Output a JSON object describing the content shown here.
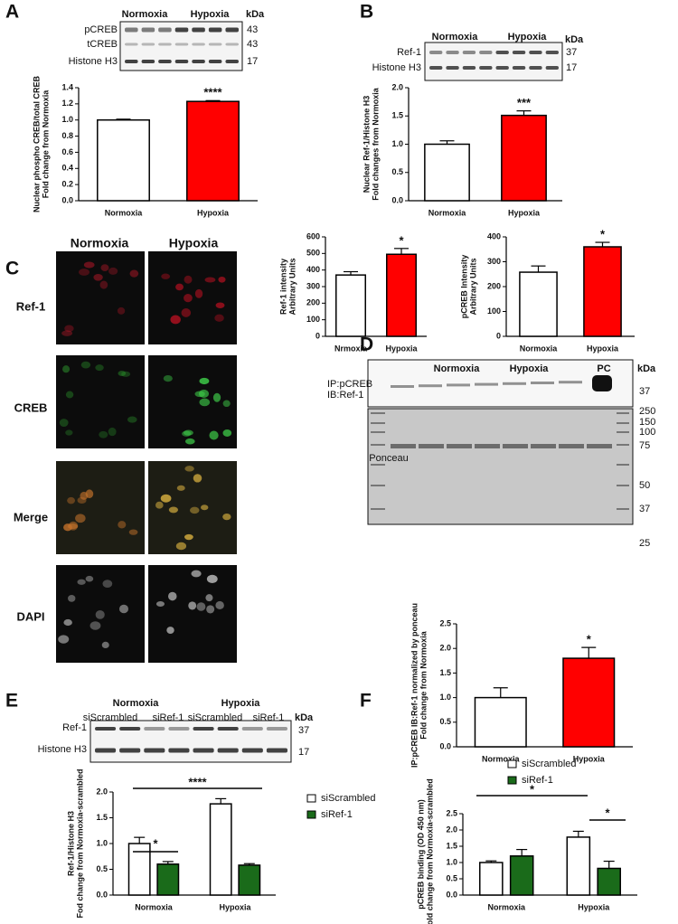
{
  "figure": {
    "letters": [
      "A",
      "B",
      "C",
      "D",
      "E",
      "F"
    ],
    "blot_a": {
      "groups": [
        "Normoxia",
        "Hypoxia"
      ],
      "unit": "kDa",
      "rows": [
        {
          "label": "pCREB",
          "kda": 43
        },
        {
          "label": "tCREB",
          "kda": 43
        },
        {
          "label": "Histone H3",
          "kda": 17
        }
      ]
    },
    "blot_b": {
      "groups": [
        "Normoxia",
        "Hypoxia"
      ],
      "unit": "kDa",
      "rows": [
        {
          "label": "Ref-1",
          "kda": 37
        },
        {
          "label": "Histone H3",
          "kda": 17
        }
      ]
    },
    "microscopy": {
      "columns": [
        "Normoxia",
        "Hypoxia"
      ],
      "rows": [
        "Ref-1",
        "CREB",
        "Merge",
        "DAPI"
      ]
    },
    "blot_d": {
      "groups": [
        "Normoxia",
        "Hypoxia",
        "PC"
      ],
      "unit": "kDa",
      "probe": [
        "IP:pCREB",
        "IB:Ref-1"
      ],
      "probe_kda": 37,
      "stain": "Ponceau",
      "ladder": [
        250,
        150,
        100,
        75,
        50,
        37,
        25
      ]
    },
    "blot_e": {
      "groups": [
        "Normoxia",
        "Hypoxia"
      ],
      "lanes": [
        "siScrambled",
        "siRef-1",
        "siScrambled",
        "siRef-1"
      ],
      "unit": "kDa",
      "rows": [
        {
          "label": "Ref-1",
          "kda": 37
        },
        {
          "label": "Histone H3",
          "kda": 17
        }
      ]
    }
  },
  "chart_data": [
    {
      "type": "bar",
      "ylabel": [
        "Nuclear phospho CREB/total CREB",
        "Fold change from Normoxia"
      ],
      "categories": [
        "Normoxia",
        "Hypoxia"
      ],
      "values": [
        1.0,
        1.23
      ],
      "errors": [
        0.01,
        0.01
      ],
      "colors": [
        "#ffffff",
        "#ff0000"
      ],
      "ylim": [
        0,
        1.4
      ],
      "yticks": [
        {
          "value": 0,
          "label": "0.0"
        },
        0.2,
        0.4,
        0.6,
        0.8,
        {
          "value": 1,
          "label": "1.0"
        },
        1.2,
        1.4
      ],
      "annotations": [
        "****"
      ]
    },
    {
      "type": "bar",
      "ylabel": [
        "Nuclear Ref-1/Histone H3",
        "Fold changes from Normoxia"
      ],
      "categories": [
        "Normoxia",
        "Hypoxia"
      ],
      "values": [
        1.0,
        1.51
      ],
      "errors": [
        0.06,
        0.08
      ],
      "colors": [
        "#ffffff",
        "#ff0000"
      ],
      "ylim": [
        0,
        2
      ],
      "yticks": [
        {
          "value": 0,
          "label": "0.0"
        },
        0.5,
        {
          "value": 1,
          "label": "1.0"
        },
        1.5,
        {
          "value": 2,
          "label": "2.0"
        }
      ],
      "annotations": [
        "***"
      ]
    },
    {
      "type": "bar",
      "ylabel": [
        "Ref-1 intensity",
        "Arbitrary Units"
      ],
      "categories": [
        "Nrmoxia",
        "Hypoxia"
      ],
      "values": [
        370,
        495
      ],
      "errors": [
        20,
        35
      ],
      "colors": [
        "#ffffff",
        "#ff0000"
      ],
      "ylim": [
        0,
        600
      ],
      "yticks": [
        0,
        100,
        200,
        300,
        400,
        500,
        600
      ],
      "annotations": [
        "*"
      ]
    },
    {
      "type": "bar",
      "ylabel": [
        "pCREB Intensity",
        "Arbitrary Units"
      ],
      "categories": [
        "Normoxia",
        "Hypoxia"
      ],
      "values": [
        258,
        360
      ],
      "errors": [
        25,
        18
      ],
      "colors": [
        "#ffffff",
        "#ff0000"
      ],
      "ylim": [
        0,
        400
      ],
      "yticks": [
        0,
        100,
        200,
        300,
        400
      ],
      "annotations": [
        "*"
      ]
    },
    {
      "type": "bar",
      "ylabel": [
        "IP:pCREB IB:Ref-1 normalized by ponceau",
        "Fold change from Normoxia"
      ],
      "categories": [
        "Normoxia",
        "Hypoxia"
      ],
      "values": [
        1.0,
        1.8
      ],
      "errors": [
        0.2,
        0.22
      ],
      "colors": [
        "#ffffff",
        "#ff0000"
      ],
      "ylim": [
        0,
        2.5
      ],
      "yticks": [
        {
          "value": 0,
          "label": "0.0"
        },
        0.5,
        {
          "value": 1,
          "label": "1.0"
        },
        1.5,
        {
          "value": 2,
          "label": "2.0"
        },
        2.5
      ],
      "annotations": [
        "*"
      ]
    },
    {
      "type": "groupbar",
      "ylabel": [
        "Ref-1/Histone H3",
        "Fod change from Normoxia-scrambled"
      ],
      "categories": [
        "Normoxia",
        "Hypoxia"
      ],
      "series": [
        {
          "name": "siScrambled",
          "color": "#ffffff",
          "values": [
            1.0,
            1.77
          ],
          "errors": [
            0.12,
            0.1
          ]
        },
        {
          "name": "siRef-1",
          "color": "#1a6b1a",
          "values": [
            0.6,
            0.58
          ],
          "errors": [
            0.05,
            0.03
          ]
        }
      ],
      "ylim": [
        0,
        2
      ],
      "yticks": [
        {
          "value": 0,
          "label": "0.0"
        },
        0.5,
        {
          "value": 1,
          "label": "1.0"
        },
        1.5,
        {
          "value": 2,
          "label": "2.0"
        }
      ],
      "legend": "right",
      "annotations": [
        "*",
        "****"
      ]
    },
    {
      "type": "groupbar",
      "ylabel": [
        "pCREB binding (OD 450 nm)",
        "Fold change from Normoxia-scrambled"
      ],
      "categories": [
        "Normoxia",
        "Hypoxia"
      ],
      "series": [
        {
          "name": "siScrambled",
          "color": "#ffffff",
          "values": [
            1.0,
            1.78
          ],
          "errors": [
            0.05,
            0.18
          ]
        },
        {
          "name": "siRef-1",
          "color": "#1a6b1a",
          "values": [
            1.2,
            0.82
          ],
          "errors": [
            0.2,
            0.22
          ]
        }
      ],
      "ylim": [
        0,
        2.5
      ],
      "yticks": [
        {
          "value": 0,
          "label": "0.0"
        },
        0.5,
        {
          "value": 1,
          "label": "1.0"
        },
        1.5,
        {
          "value": 2,
          "label": "2.0"
        },
        2.5
      ],
      "legend": "top",
      "annotations": [
        "*",
        "*"
      ]
    }
  ]
}
